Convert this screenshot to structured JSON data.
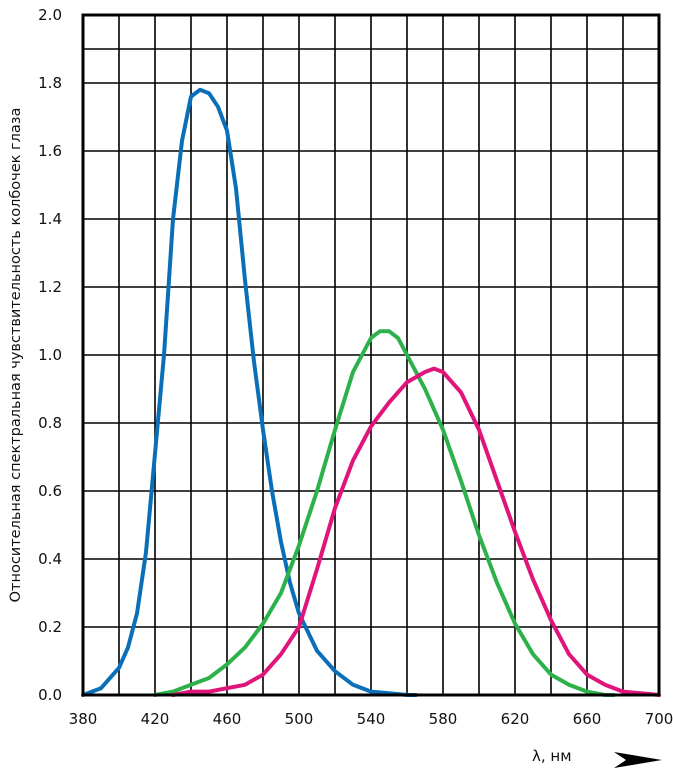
{
  "chart_data": {
    "type": "line",
    "title": "",
    "xlabel": "λ, нм",
    "ylabel": "Относительная спектральная чувствительность колбочек глаза",
    "xlim": [
      380,
      700
    ],
    "ylim": [
      0.0,
      2.0
    ],
    "x_ticks": [
      380,
      420,
      460,
      500,
      540,
      580,
      620,
      660,
      700
    ],
    "x_tick_labels": [
      "380",
      "420",
      "460",
      "500",
      "540",
      "580",
      "620",
      "660",
      "700"
    ],
    "y_ticks": [
      0.0,
      0.2,
      0.4,
      0.6,
      0.8,
      1.0,
      1.2,
      1.4,
      1.6,
      1.8,
      2.0
    ],
    "y_tick_labels": [
      "0.0",
      "0.2",
      "0.4",
      "0.6",
      "0.8",
      "1.0",
      "1.2",
      "1.4",
      "1.6",
      "1.8",
      "2.0"
    ],
    "grid": true,
    "series": [
      {
        "color": "#0a6fb8",
        "x": [
          380,
          390,
          400,
          405,
          410,
          415,
          420,
          425,
          430,
          435,
          440,
          445,
          450,
          455,
          460,
          465,
          470,
          475,
          480,
          485,
          490,
          495,
          500,
          510,
          520,
          530,
          540,
          550,
          560,
          565
        ],
        "y": [
          0.0,
          0.02,
          0.08,
          0.14,
          0.24,
          0.42,
          0.71,
          1.0,
          1.4,
          1.63,
          1.76,
          1.78,
          1.77,
          1.73,
          1.66,
          1.49,
          1.22,
          0.98,
          0.78,
          0.6,
          0.45,
          0.33,
          0.24,
          0.13,
          0.07,
          0.03,
          0.01,
          0.005,
          0.0,
          0.0
        ]
      },
      {
        "color": "#2db14a",
        "x": [
          420,
          430,
          440,
          450,
          460,
          470,
          480,
          490,
          500,
          510,
          520,
          530,
          540,
          545,
          550,
          555,
          560,
          570,
          580,
          590,
          600,
          610,
          620,
          630,
          640,
          650,
          660,
          670,
          675
        ],
        "y": [
          0.0,
          0.01,
          0.03,
          0.05,
          0.09,
          0.14,
          0.21,
          0.3,
          0.44,
          0.6,
          0.78,
          0.95,
          1.05,
          1.07,
          1.07,
          1.05,
          1.0,
          0.9,
          0.78,
          0.63,
          0.47,
          0.33,
          0.21,
          0.12,
          0.06,
          0.03,
          0.01,
          0.0,
          0.0
        ]
      },
      {
        "color": "#e0147a",
        "x": [
          430,
          440,
          450,
          460,
          470,
          480,
          490,
          500,
          510,
          520,
          530,
          540,
          550,
          560,
          570,
          575,
          580,
          590,
          600,
          610,
          620,
          630,
          640,
          650,
          660,
          670,
          680,
          690,
          700
        ],
        "y": [
          0.0,
          0.01,
          0.01,
          0.02,
          0.03,
          0.06,
          0.12,
          0.2,
          0.37,
          0.55,
          0.69,
          0.79,
          0.86,
          0.92,
          0.95,
          0.96,
          0.95,
          0.89,
          0.78,
          0.63,
          0.48,
          0.34,
          0.22,
          0.12,
          0.06,
          0.03,
          0.01,
          0.005,
          0.0
        ]
      }
    ]
  }
}
